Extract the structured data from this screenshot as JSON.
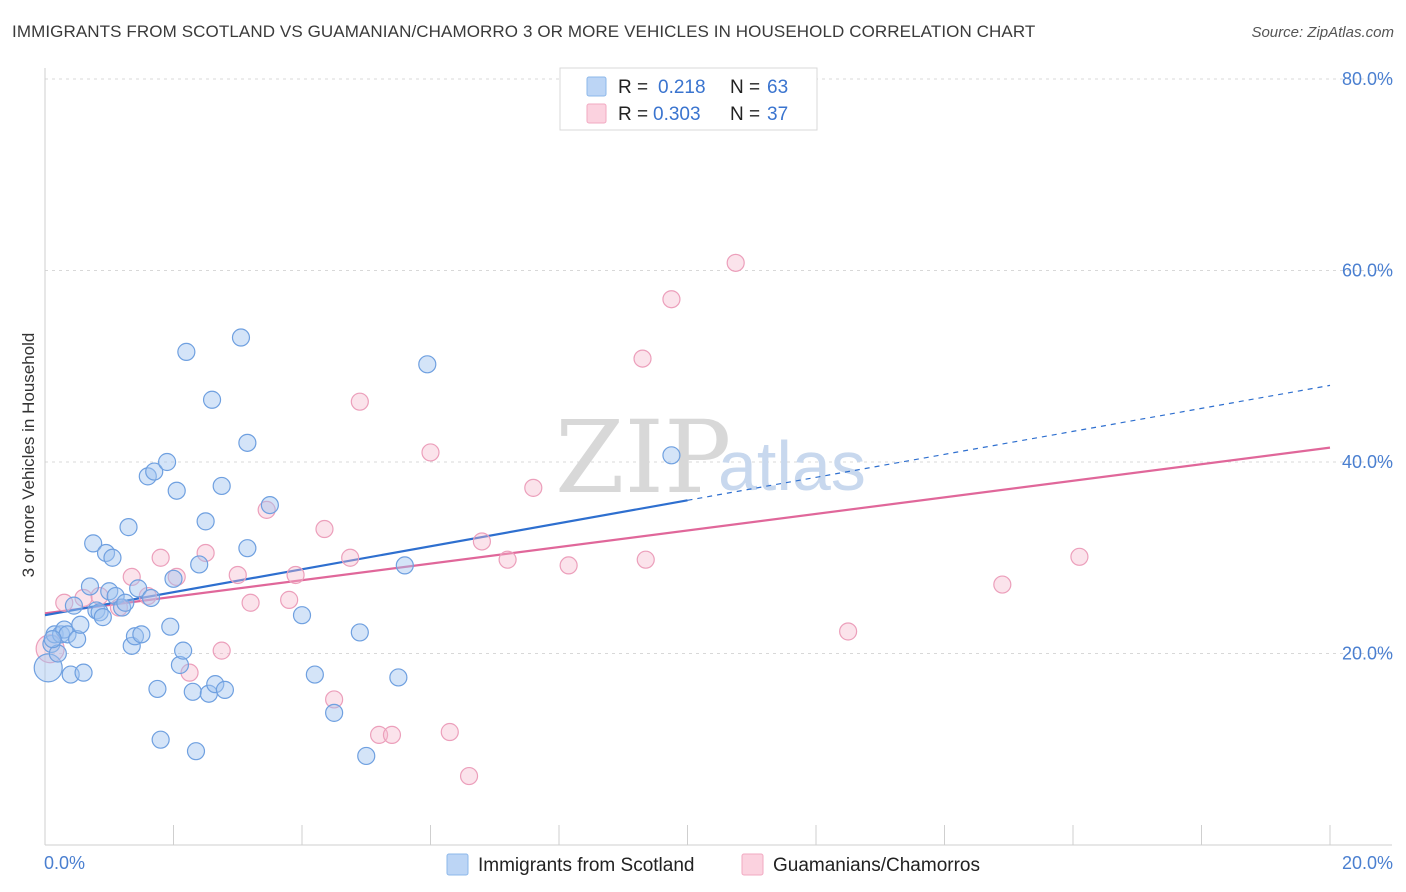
{
  "title": "IMMIGRANTS FROM SCOTLAND VS GUAMANIAN/CHAMORRO 3 OR MORE VEHICLES IN HOUSEHOLD CORRELATION CHART",
  "source": "Source: ZipAtlas.com",
  "colors": {
    "blue": "#8db8ea",
    "blue_line": "#2e6fcf",
    "pink": "#f2a9c2",
    "pink_line": "#e0679a",
    "tick_text": "#4a7fd0"
  },
  "legend": {
    "rows": [
      {
        "r_label": "R =",
        "r_value": "0.218",
        "n_label": "N =",
        "n_value": "63"
      },
      {
        "r_label": "R =",
        "r_value": "0.303",
        "n_label": "N =",
        "n_value": "37"
      }
    ]
  },
  "watermark": {
    "zip": "ZIP",
    "atlas": "atlas"
  },
  "chart_data": {
    "type": "scatter",
    "title": "IMMIGRANTS FROM SCOTLAND VS GUAMANIAN/CHAMORRO 3 OR MORE VEHICLES IN HOUSEHOLD CORRELATION CHART",
    "xlabel": "",
    "ylabel": "3 or more Vehicles in Household",
    "xlim": [
      0,
      20
    ],
    "ylim": [
      0,
      82
    ],
    "x_tick_labels": [
      "0.0%",
      "20.0%"
    ],
    "y_ticks": [
      20,
      40,
      60,
      80
    ],
    "y_tick_labels": [
      "20.0%",
      "40.0%",
      "60.0%",
      "80.0%"
    ],
    "grid": true,
    "series": [
      {
        "name": "Immigrants from Scotland",
        "color": "#8db8ea",
        "trend": {
          "x": [
            0,
            10
          ],
          "y": [
            24.0,
            36.0
          ],
          "dashed_extension": {
            "x": [
              10,
              20
            ],
            "y": [
              36.0,
              48.0
            ]
          }
        },
        "points": [
          {
            "x": 0.05,
            "y": 18.5,
            "big": true
          },
          {
            "x": 0.1,
            "y": 21.0
          },
          {
            "x": 0.15,
            "y": 22.0
          },
          {
            "x": 0.2,
            "y": 20.0
          },
          {
            "x": 0.25,
            "y": 22.0
          },
          {
            "x": 0.3,
            "y": 22.5
          },
          {
            "x": 0.35,
            "y": 22.0
          },
          {
            "x": 0.4,
            "y": 17.8
          },
          {
            "x": 0.45,
            "y": 25.0
          },
          {
            "x": 0.5,
            "y": 21.5
          },
          {
            "x": 0.55,
            "y": 23.0
          },
          {
            "x": 0.6,
            "y": 18.0
          },
          {
            "x": 0.7,
            "y": 27.0
          },
          {
            "x": 0.75,
            "y": 31.5
          },
          {
            "x": 0.8,
            "y": 24.5
          },
          {
            "x": 0.85,
            "y": 24.3
          },
          {
            "x": 0.9,
            "y": 23.8
          },
          {
            "x": 0.95,
            "y": 30.5
          },
          {
            "x": 1.0,
            "y": 26.5
          },
          {
            "x": 1.05,
            "y": 30.0
          },
          {
            "x": 1.1,
            "y": 26.0
          },
          {
            "x": 1.2,
            "y": 24.8
          },
          {
            "x": 1.25,
            "y": 25.3
          },
          {
            "x": 1.3,
            "y": 33.2
          },
          {
            "x": 1.35,
            "y": 20.8
          },
          {
            "x": 1.4,
            "y": 21.8
          },
          {
            "x": 1.45,
            "y": 26.8
          },
          {
            "x": 1.5,
            "y": 22.0
          },
          {
            "x": 1.6,
            "y": 38.5
          },
          {
            "x": 1.65,
            "y": 25.8
          },
          {
            "x": 1.7,
            "y": 39.0
          },
          {
            "x": 1.75,
            "y": 16.3
          },
          {
            "x": 1.8,
            "y": 11.0
          },
          {
            "x": 1.9,
            "y": 40.0
          },
          {
            "x": 1.95,
            "y": 22.8
          },
          {
            "x": 2.0,
            "y": 27.8
          },
          {
            "x": 2.05,
            "y": 37.0
          },
          {
            "x": 2.1,
            "y": 18.8
          },
          {
            "x": 2.15,
            "y": 20.3
          },
          {
            "x": 2.2,
            "y": 51.5
          },
          {
            "x": 2.3,
            "y": 16.0
          },
          {
            "x": 2.35,
            "y": 9.8
          },
          {
            "x": 2.4,
            "y": 29.3
          },
          {
            "x": 2.5,
            "y": 33.8
          },
          {
            "x": 2.55,
            "y": 15.8
          },
          {
            "x": 2.6,
            "y": 46.5
          },
          {
            "x": 2.65,
            "y": 16.8
          },
          {
            "x": 2.75,
            "y": 37.5
          },
          {
            "x": 2.8,
            "y": 16.2
          },
          {
            "x": 3.05,
            "y": 53.0
          },
          {
            "x": 3.15,
            "y": 42.0
          },
          {
            "x": 3.15,
            "y": 31.0
          },
          {
            "x": 3.5,
            "y": 35.5
          },
          {
            "x": 4.0,
            "y": 24.0
          },
          {
            "x": 4.2,
            "y": 17.8
          },
          {
            "x": 4.5,
            "y": 13.8
          },
          {
            "x": 4.9,
            "y": 22.2
          },
          {
            "x": 5.0,
            "y": 9.3
          },
          {
            "x": 5.5,
            "y": 17.5
          },
          {
            "x": 5.6,
            "y": 29.2
          },
          {
            "x": 5.95,
            "y": 50.2
          },
          {
            "x": 9.75,
            "y": 40.7
          },
          {
            "x": 0.12,
            "y": 21.5
          }
        ]
      },
      {
        "name": "Guamanians/Chamorros",
        "color": "#f2a9c2",
        "trend": {
          "x": [
            0,
            20
          ],
          "y": [
            24.2,
            41.5
          ]
        },
        "points": [
          {
            "x": 0.08,
            "y": 20.5,
            "big": true
          },
          {
            "x": 0.3,
            "y": 25.3
          },
          {
            "x": 0.6,
            "y": 25.8
          },
          {
            "x": 0.85,
            "y": 26.0
          },
          {
            "x": 1.15,
            "y": 24.8
          },
          {
            "x": 1.35,
            "y": 28.0
          },
          {
            "x": 1.6,
            "y": 26.0
          },
          {
            "x": 1.8,
            "y": 30.0
          },
          {
            "x": 2.05,
            "y": 28.0
          },
          {
            "x": 2.25,
            "y": 18.0
          },
          {
            "x": 2.5,
            "y": 30.5
          },
          {
            "x": 2.75,
            "y": 20.3
          },
          {
            "x": 3.0,
            "y": 28.2
          },
          {
            "x": 3.2,
            "y": 25.3
          },
          {
            "x": 3.45,
            "y": 35.0
          },
          {
            "x": 3.8,
            "y": 25.6
          },
          {
            "x": 3.9,
            "y": 28.2
          },
          {
            "x": 4.35,
            "y": 33.0
          },
          {
            "x": 4.5,
            "y": 15.2
          },
          {
            "x": 4.75,
            "y": 30.0
          },
          {
            "x": 4.9,
            "y": 46.3
          },
          {
            "x": 5.2,
            "y": 11.5
          },
          {
            "x": 5.4,
            "y": 11.5
          },
          {
            "x": 6.0,
            "y": 41.0
          },
          {
            "x": 6.3,
            "y": 11.8
          },
          {
            "x": 6.6,
            "y": 7.2
          },
          {
            "x": 6.8,
            "y": 31.7
          },
          {
            "x": 7.2,
            "y": 29.8
          },
          {
            "x": 7.6,
            "y": 37.3
          },
          {
            "x": 8.15,
            "y": 29.2
          },
          {
            "x": 9.3,
            "y": 50.8
          },
          {
            "x": 9.35,
            "y": 29.8
          },
          {
            "x": 9.75,
            "y": 57.0
          },
          {
            "x": 10.75,
            "y": 60.8
          },
          {
            "x": 12.5,
            "y": 22.3
          },
          {
            "x": 14.9,
            "y": 27.2
          },
          {
            "x": 16.1,
            "y": 30.1
          }
        ]
      }
    ]
  }
}
